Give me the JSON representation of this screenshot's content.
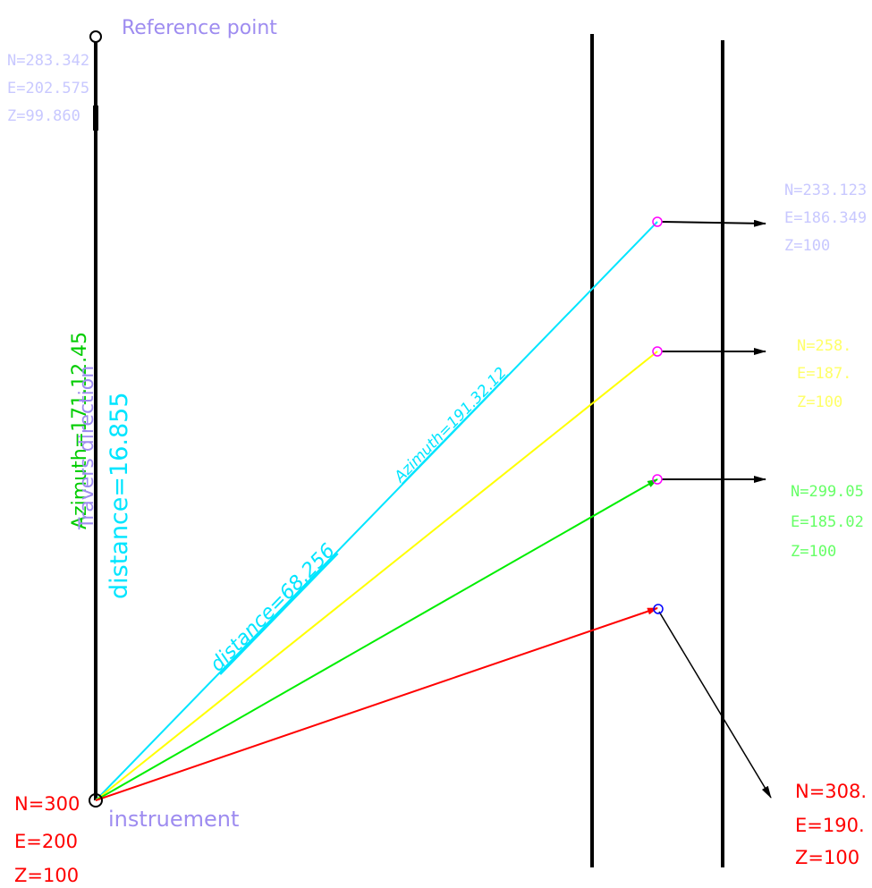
{
  "labels": {
    "reference_point": "Reference point",
    "instrument": "instruement",
    "azimuth_main": "Azimuth=171.12.45",
    "travers_direction": "Travers direction",
    "distance_main": "distance=16.855",
    "distance_cyan": "distance=68.256",
    "azimuth_cyan": "Azimuth=191.32.12"
  },
  "reference_coords": {
    "n": "N=283.342",
    "e": "E=202.575",
    "z": "Z=99.860"
  },
  "instrument_coords": {
    "n": "N=300",
    "e": "E=200",
    "z": "Z=100"
  },
  "target_coords": [
    {
      "n": "N=233.123",
      "e": "E=186.349",
      "z": "Z=100",
      "color": "#c8c8ff"
    },
    {
      "n": "N=258.",
      "e": "E=187.",
      "z": "Z=100",
      "color": "#ffff66"
    },
    {
      "n": "N=299.05",
      "e": "E=185.02",
      "z": "Z=100",
      "color": "#66ff66"
    },
    {
      "n": "N=308.",
      "e": "E=190.",
      "z": "Z=100",
      "color": "#ff0000"
    }
  ],
  "colors": {
    "label_purple": "#9e8cf0",
    "coord_lavender": "#c8c8ff",
    "ray_cyan": "#00e5ff",
    "ray_yellow": "#ffff00",
    "ray_green": "#00ee00",
    "ray_red": "#ff0000",
    "circle_magenta": "#ff00ff",
    "circle_blue": "#0000ff",
    "line_black": "#000000"
  }
}
